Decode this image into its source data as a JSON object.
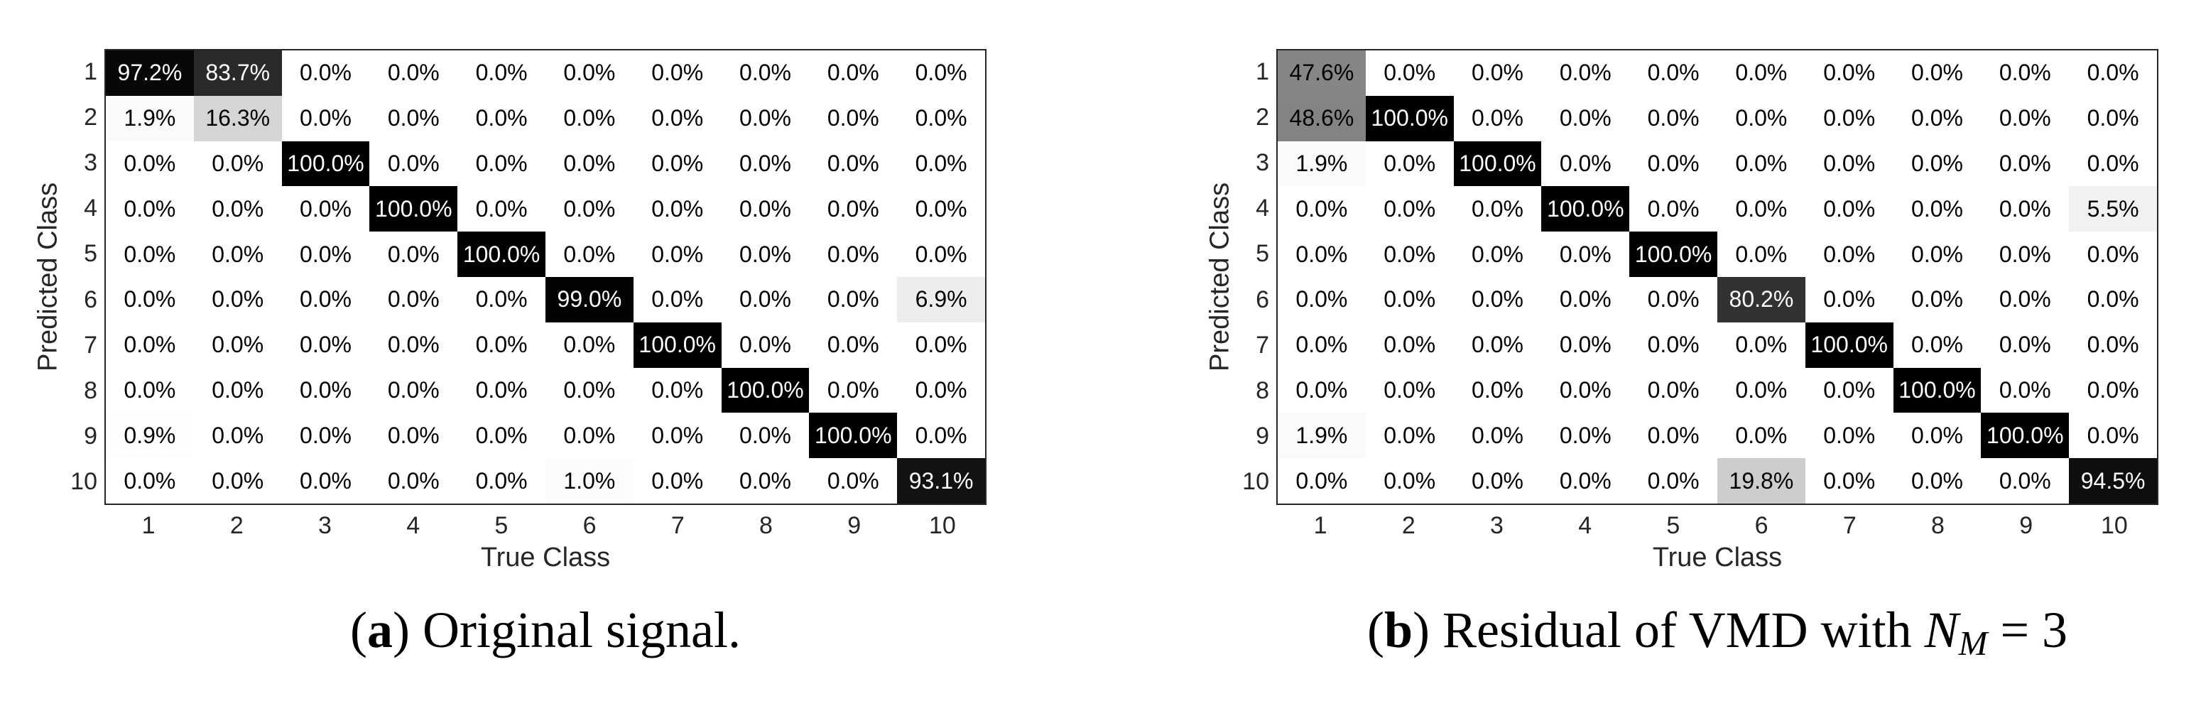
{
  "figure": {
    "background": "#ffffff",
    "axis_color": "#262626",
    "colormap_note": "grayscale: 0% = white (#ffffff), 100% = black (#000000), cell text switches to white when value >= 50%"
  },
  "panels": [
    {
      "id": "a",
      "caption": {
        "paren_open": "(",
        "label": "a",
        "paren_close": ")",
        "text": " Original signal.",
        "math_var": "",
        "math_sub": "",
        "math_tail": ""
      }
    },
    {
      "id": "b",
      "caption": {
        "paren_open": "(",
        "label": "b",
        "paren_close": ")",
        "text": " Residual of VMD with ",
        "math_var": "N",
        "math_sub": "M",
        "math_tail": " = 3"
      }
    }
  ],
  "chart_data": [
    {
      "type": "heatmap",
      "title": "",
      "xlabel": "True Class",
      "ylabel": "Predicted Class",
      "x_categories": [
        "1",
        "2",
        "3",
        "4",
        "5",
        "6",
        "7",
        "8",
        "9",
        "10"
      ],
      "y_categories": [
        "1",
        "2",
        "3",
        "4",
        "5",
        "6",
        "7",
        "8",
        "9",
        "10"
      ],
      "value_unit": "percent",
      "value_format": "one_decimal_percent",
      "caption": "(a) Original signal.",
      "values_percent": [
        [
          97.2,
          83.7,
          0.0,
          0.0,
          0.0,
          0.0,
          0.0,
          0.0,
          0.0,
          0.0
        ],
        [
          1.9,
          16.3,
          0.0,
          0.0,
          0.0,
          0.0,
          0.0,
          0.0,
          0.0,
          0.0
        ],
        [
          0.0,
          0.0,
          100.0,
          0.0,
          0.0,
          0.0,
          0.0,
          0.0,
          0.0,
          0.0
        ],
        [
          0.0,
          0.0,
          0.0,
          100.0,
          0.0,
          0.0,
          0.0,
          0.0,
          0.0,
          0.0
        ],
        [
          0.0,
          0.0,
          0.0,
          0.0,
          100.0,
          0.0,
          0.0,
          0.0,
          0.0,
          0.0
        ],
        [
          0.0,
          0.0,
          0.0,
          0.0,
          0.0,
          99.0,
          0.0,
          0.0,
          0.0,
          6.9
        ],
        [
          0.0,
          0.0,
          0.0,
          0.0,
          0.0,
          0.0,
          100.0,
          0.0,
          0.0,
          0.0
        ],
        [
          0.0,
          0.0,
          0.0,
          0.0,
          0.0,
          0.0,
          0.0,
          100.0,
          0.0,
          0.0
        ],
        [
          0.9,
          0.0,
          0.0,
          0.0,
          0.0,
          0.0,
          0.0,
          0.0,
          100.0,
          0.0
        ],
        [
          0.0,
          0.0,
          0.0,
          0.0,
          0.0,
          1.0,
          0.0,
          0.0,
          0.0,
          93.1
        ]
      ]
    },
    {
      "type": "heatmap",
      "title": "",
      "xlabel": "True Class",
      "ylabel": "Predicted Class",
      "x_categories": [
        "1",
        "2",
        "3",
        "4",
        "5",
        "6",
        "7",
        "8",
        "9",
        "10"
      ],
      "y_categories": [
        "1",
        "2",
        "3",
        "4",
        "5",
        "6",
        "7",
        "8",
        "9",
        "10"
      ],
      "value_unit": "percent",
      "value_format": "one_decimal_percent",
      "caption": "(b) Residual of VMD with N_M = 3",
      "values_percent": [
        [
          47.6,
          0.0,
          0.0,
          0.0,
          0.0,
          0.0,
          0.0,
          0.0,
          0.0,
          0.0
        ],
        [
          48.6,
          100.0,
          0.0,
          0.0,
          0.0,
          0.0,
          0.0,
          0.0,
          0.0,
          0.0
        ],
        [
          1.9,
          0.0,
          100.0,
          0.0,
          0.0,
          0.0,
          0.0,
          0.0,
          0.0,
          0.0
        ],
        [
          0.0,
          0.0,
          0.0,
          100.0,
          0.0,
          0.0,
          0.0,
          0.0,
          0.0,
          5.5
        ],
        [
          0.0,
          0.0,
          0.0,
          0.0,
          100.0,
          0.0,
          0.0,
          0.0,
          0.0,
          0.0
        ],
        [
          0.0,
          0.0,
          0.0,
          0.0,
          0.0,
          80.2,
          0.0,
          0.0,
          0.0,
          0.0
        ],
        [
          0.0,
          0.0,
          0.0,
          0.0,
          0.0,
          0.0,
          100.0,
          0.0,
          0.0,
          0.0
        ],
        [
          0.0,
          0.0,
          0.0,
          0.0,
          0.0,
          0.0,
          0.0,
          100.0,
          0.0,
          0.0
        ],
        [
          1.9,
          0.0,
          0.0,
          0.0,
          0.0,
          0.0,
          0.0,
          0.0,
          100.0,
          0.0
        ],
        [
          0.0,
          0.0,
          0.0,
          0.0,
          0.0,
          19.8,
          0.0,
          0.0,
          0.0,
          94.5
        ]
      ]
    }
  ]
}
